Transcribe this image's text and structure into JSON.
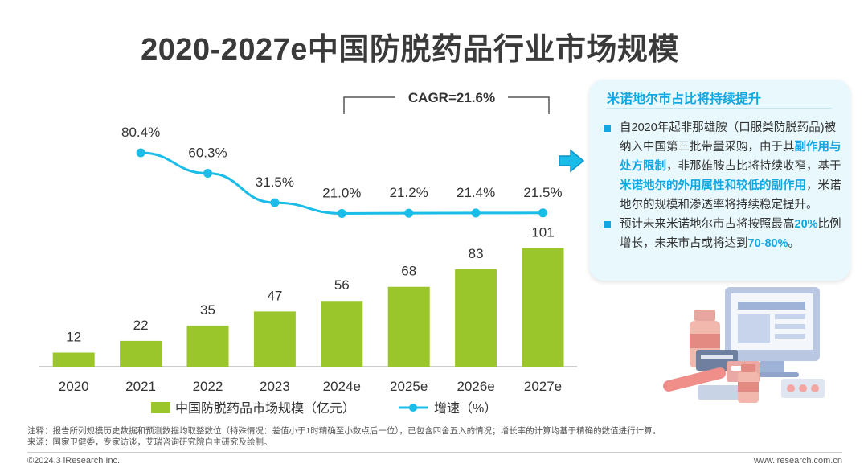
{
  "title": "2020-2027e中国防脱药品行业市场规模",
  "chart_data": {
    "type": "bar",
    "categories": [
      "2020",
      "2021",
      "2022",
      "2023",
      "2024e",
      "2025e",
      "2026e",
      "2027e"
    ],
    "series": [
      {
        "name": "中国防脱药品市场规模（亿元）",
        "type": "bar",
        "values": [
          12,
          22,
          35,
          47,
          56,
          68,
          83,
          101
        ],
        "color": "#9bc62b"
      },
      {
        "name": "增速（%）",
        "type": "line",
        "values": [
          null,
          80.4,
          60.3,
          31.5,
          21.0,
          21.2,
          21.4,
          21.5
        ],
        "labels": [
          "",
          "80.4%",
          "60.3%",
          "31.5%",
          "21.0%",
          "21.2%",
          "21.4%",
          "21.5%"
        ],
        "color": "#1bbde8"
      }
    ],
    "cagr_label": "CAGR=21.6%",
    "legend_position": "bottom"
  },
  "panel": {
    "title": "米诺地尔市占比将持续提升",
    "bullet1": {
      "t1": "自2020年起非那雄胺（口服类防脱药品)被纳入中国第三批带量采购，由于其",
      "h1": "副作用与处方限制",
      "t2": "，非那雄胺占比将持续收窄，基于",
      "h2": "米诺地尔的外用属性和较低的副作用",
      "t3": "，米诺地尔的规模和渗透率将持续稳定提升。"
    },
    "bullet2": {
      "t1": "预计未来米诺地尔市占将按照最高",
      "h1": "20%",
      "t2": "比例增长，未来市占或将达到",
      "h2": "70-80%",
      "t3": "。"
    }
  },
  "notes": {
    "line1": "注释：报告所列规模历史数据和预测数据均取整数位（特殊情况：差值小于1时精确至小数点后一位），已包含四舍五入的情况；增长率的计算均基于精确的数值进行计算。",
    "line2": "来源：国家卫健委，专家访谈，艾瑞咨询研究院自主研究及绘制。"
  },
  "footer": {
    "copyright": "©2024.3 iResearch Inc.",
    "website": "www.iresearch.com.cn"
  },
  "colors": {
    "accent": "#11a7e0",
    "bar": "#9bc62b",
    "line": "#1bbde8"
  }
}
